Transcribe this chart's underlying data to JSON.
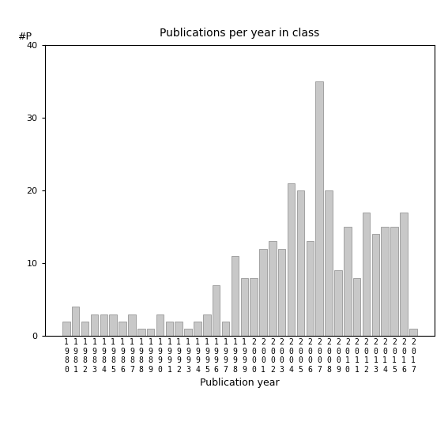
{
  "title": "Publications per year in class",
  "xlabel": "Publication year",
  "ylabel": "#P",
  "ylim": [
    0,
    40
  ],
  "yticks": [
    0,
    10,
    20,
    30,
    40
  ],
  "bar_color": "#c8c8c8",
  "bar_edgecolor": "#888888",
  "categories": [
    "1980",
    "1981",
    "1982",
    "1983",
    "1984",
    "1985",
    "1986",
    "1987",
    "1988",
    "1989",
    "1990",
    "1991",
    "1992",
    "1993",
    "1994",
    "1995",
    "1996",
    "1997",
    "1998",
    "1999",
    "2000",
    "2001",
    "2002",
    "2003",
    "2004",
    "2005",
    "2006",
    "2007",
    "2008",
    "2009",
    "2010",
    "2011",
    "2012",
    "2013",
    "2014",
    "2015",
    "2016",
    "2017"
  ],
  "values": [
    2,
    4,
    2,
    3,
    3,
    3,
    2,
    3,
    1,
    1,
    3,
    2,
    2,
    1,
    2,
    3,
    7,
    2,
    11,
    8,
    8,
    12,
    13,
    12,
    21,
    20,
    13,
    35,
    20,
    9,
    15,
    8,
    17,
    14,
    15,
    15,
    17,
    1
  ],
  "background_color": "#ffffff",
  "title_fontsize": 10,
  "label_fontsize": 9,
  "tick_fontsize": 7
}
